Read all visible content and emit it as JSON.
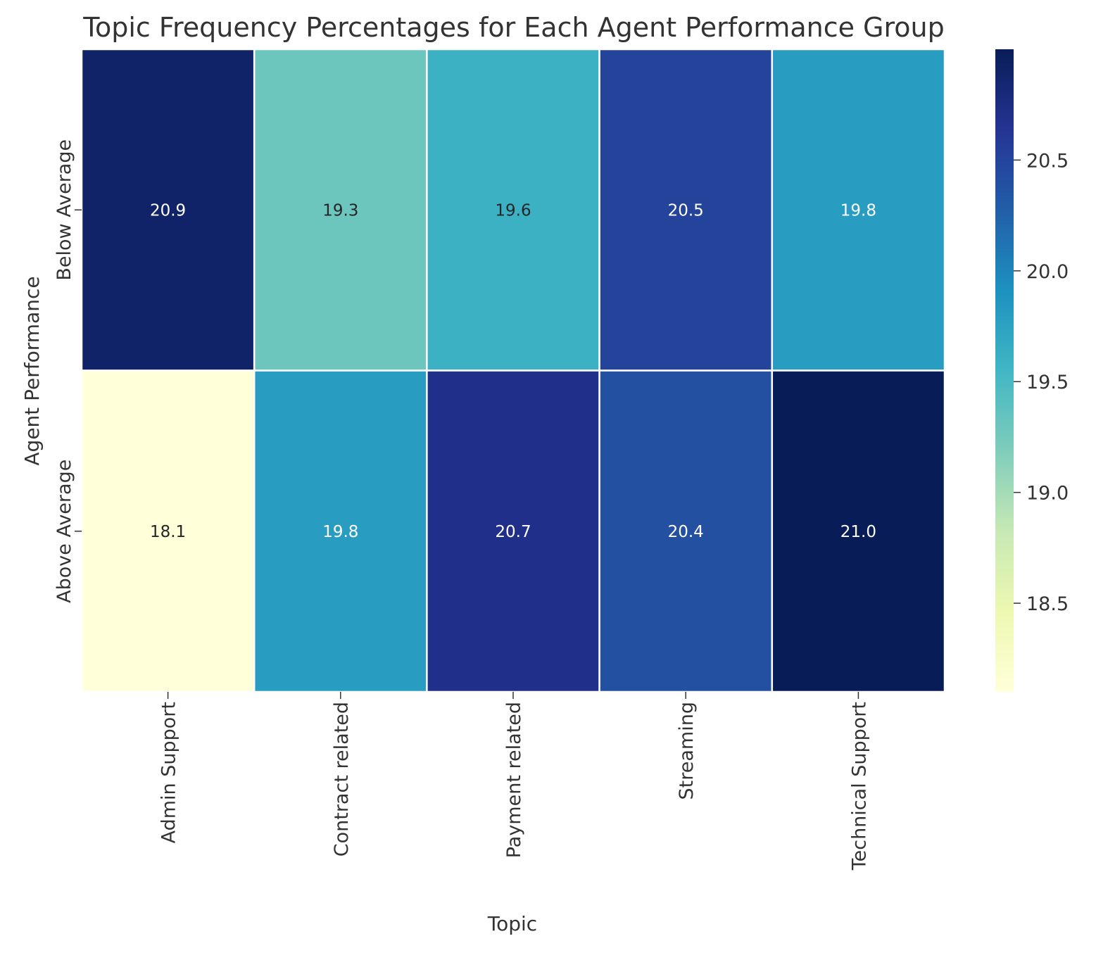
{
  "chart_data": {
    "type": "heatmap",
    "title": "Topic Frequency Percentages for Each Agent Performance Group",
    "xlabel": "Topic",
    "ylabel": "Agent Performance",
    "x_categories": [
      "Admin Support",
      "Contract related",
      "Payment related",
      "Streaming",
      "Technical Support"
    ],
    "y_categories": [
      "Below Average",
      "Above Average"
    ],
    "values": [
      [
        20.9,
        19.3,
        19.6,
        20.5,
        19.8
      ],
      [
        18.1,
        19.8,
        20.7,
        20.4,
        21.0
      ]
    ],
    "value_labels": [
      [
        "20.9",
        "19.3",
        "19.6",
        "20.5",
        "19.8"
      ],
      [
        "18.1",
        "19.8",
        "20.7",
        "20.4",
        "21.0"
      ]
    ],
    "colormap": "YlGnBu",
    "color_range": [
      18.1,
      21.0
    ],
    "colorbar_ticks": [
      "18.5",
      "19.0",
      "19.5",
      "20.0",
      "20.5"
    ],
    "cell_border_color": "#ffffff",
    "grid": false
  }
}
